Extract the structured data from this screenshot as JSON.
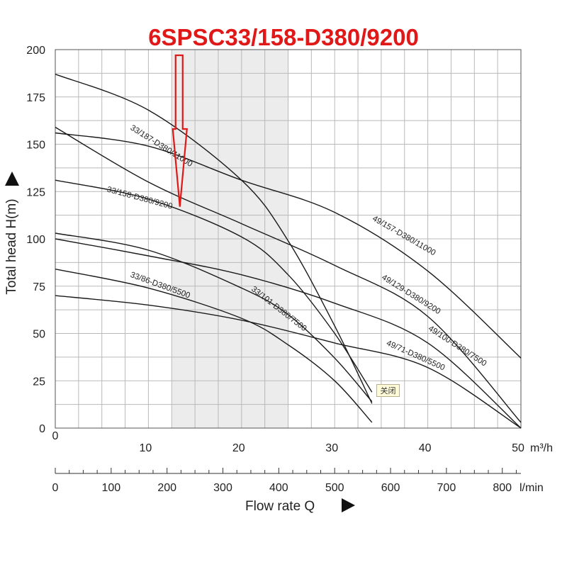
{
  "chart_data": {
    "type": "line",
    "title": "6SPSC33/158-D380/9200",
    "ylabel": "Total head H(m)",
    "xlabel": "Flow rate Q",
    "x_unit": "m³/h",
    "x2_unit": "l/min",
    "xlim": [
      0,
      50
    ],
    "ylim": [
      0,
      200
    ],
    "x_ticks": [
      10,
      20,
      30,
      40,
      50
    ],
    "x_tick_labels": [
      "10",
      "20",
      "30",
      "40",
      "50"
    ],
    "x2_ticks": [
      0,
      100,
      200,
      300,
      400,
      500,
      600,
      700,
      800
    ],
    "x2_tick_labels": [
      "0",
      "100",
      "200",
      "300",
      "400",
      "500",
      "600",
      "700",
      "800"
    ],
    "y_ticks": [
      0,
      25,
      50,
      75,
      100,
      125,
      150,
      175,
      200
    ],
    "y_tick_labels": [
      "0",
      "25",
      "50",
      "75",
      "100",
      "125",
      "150",
      "175",
      "200"
    ],
    "x0_label": "0",
    "shaded_range": [
      12.5,
      25
    ],
    "highlight": {
      "x": 13.3,
      "y": 117,
      "label_ref": "33/158-D380/9200"
    },
    "series": [
      {
        "name": "33/187-D380/11000",
        "x": [
          0,
          10,
          20,
          25,
          30,
          34
        ],
        "y": [
          187,
          168,
          131,
          99,
          54,
          13
        ],
        "label_x": 8,
        "label_y": 158,
        "label_angle": 32
      },
      {
        "name": "33/158-D380/9200",
        "x": [
          0,
          10,
          20,
          25,
          30,
          34
        ],
        "y": [
          131,
          121,
          101,
          81,
          50,
          19
        ],
        "label_x": 5.5,
        "label_y": 125,
        "label_angle": 15
      },
      {
        "name": "33/101-D380/7500",
        "x": [
          0,
          10,
          20,
          25,
          30,
          34
        ],
        "y": [
          103,
          94,
          74,
          60,
          37,
          14
        ],
        "label_x": 21,
        "label_y": 73,
        "label_angle": 38
      },
      {
        "name": "33/86-D380/5500",
        "x": [
          0,
          10,
          20,
          25,
          30,
          34
        ],
        "y": [
          84,
          74,
          58,
          44,
          25,
          3
        ],
        "label_x": 8,
        "label_y": 80,
        "label_angle": 20
      },
      {
        "name": "49/157-D380/11000",
        "x": [
          0,
          10,
          20,
          30,
          40,
          50
        ],
        "y": [
          156,
          149,
          131,
          114,
          83,
          37
        ],
        "label_x": 34,
        "label_y": 110,
        "label_angle": 30
      },
      {
        "name": "49/129-D380/9200",
        "x": [
          0,
          10,
          20,
          30,
          40,
          50
        ],
        "y": [
          159,
          130,
          108,
          86,
          59,
          3
        ],
        "label_x": 35,
        "label_y": 79,
        "label_angle": 32
      },
      {
        "name": "49/100-D380/7500",
        "x": [
          0,
          10,
          20,
          30,
          40,
          50
        ],
        "y": [
          100,
          91,
          81,
          66,
          45,
          0
        ],
        "label_x": 40,
        "label_y": 52,
        "label_angle": 33
      },
      {
        "name": "49/71-D380/5500",
        "x": [
          0,
          10,
          20,
          30,
          40,
          50
        ],
        "y": [
          70,
          65,
          57,
          45,
          32,
          0
        ],
        "label_x": 35.5,
        "label_y": 44,
        "label_angle": 24
      }
    ]
  },
  "popup": {
    "close_label": "关闭"
  }
}
